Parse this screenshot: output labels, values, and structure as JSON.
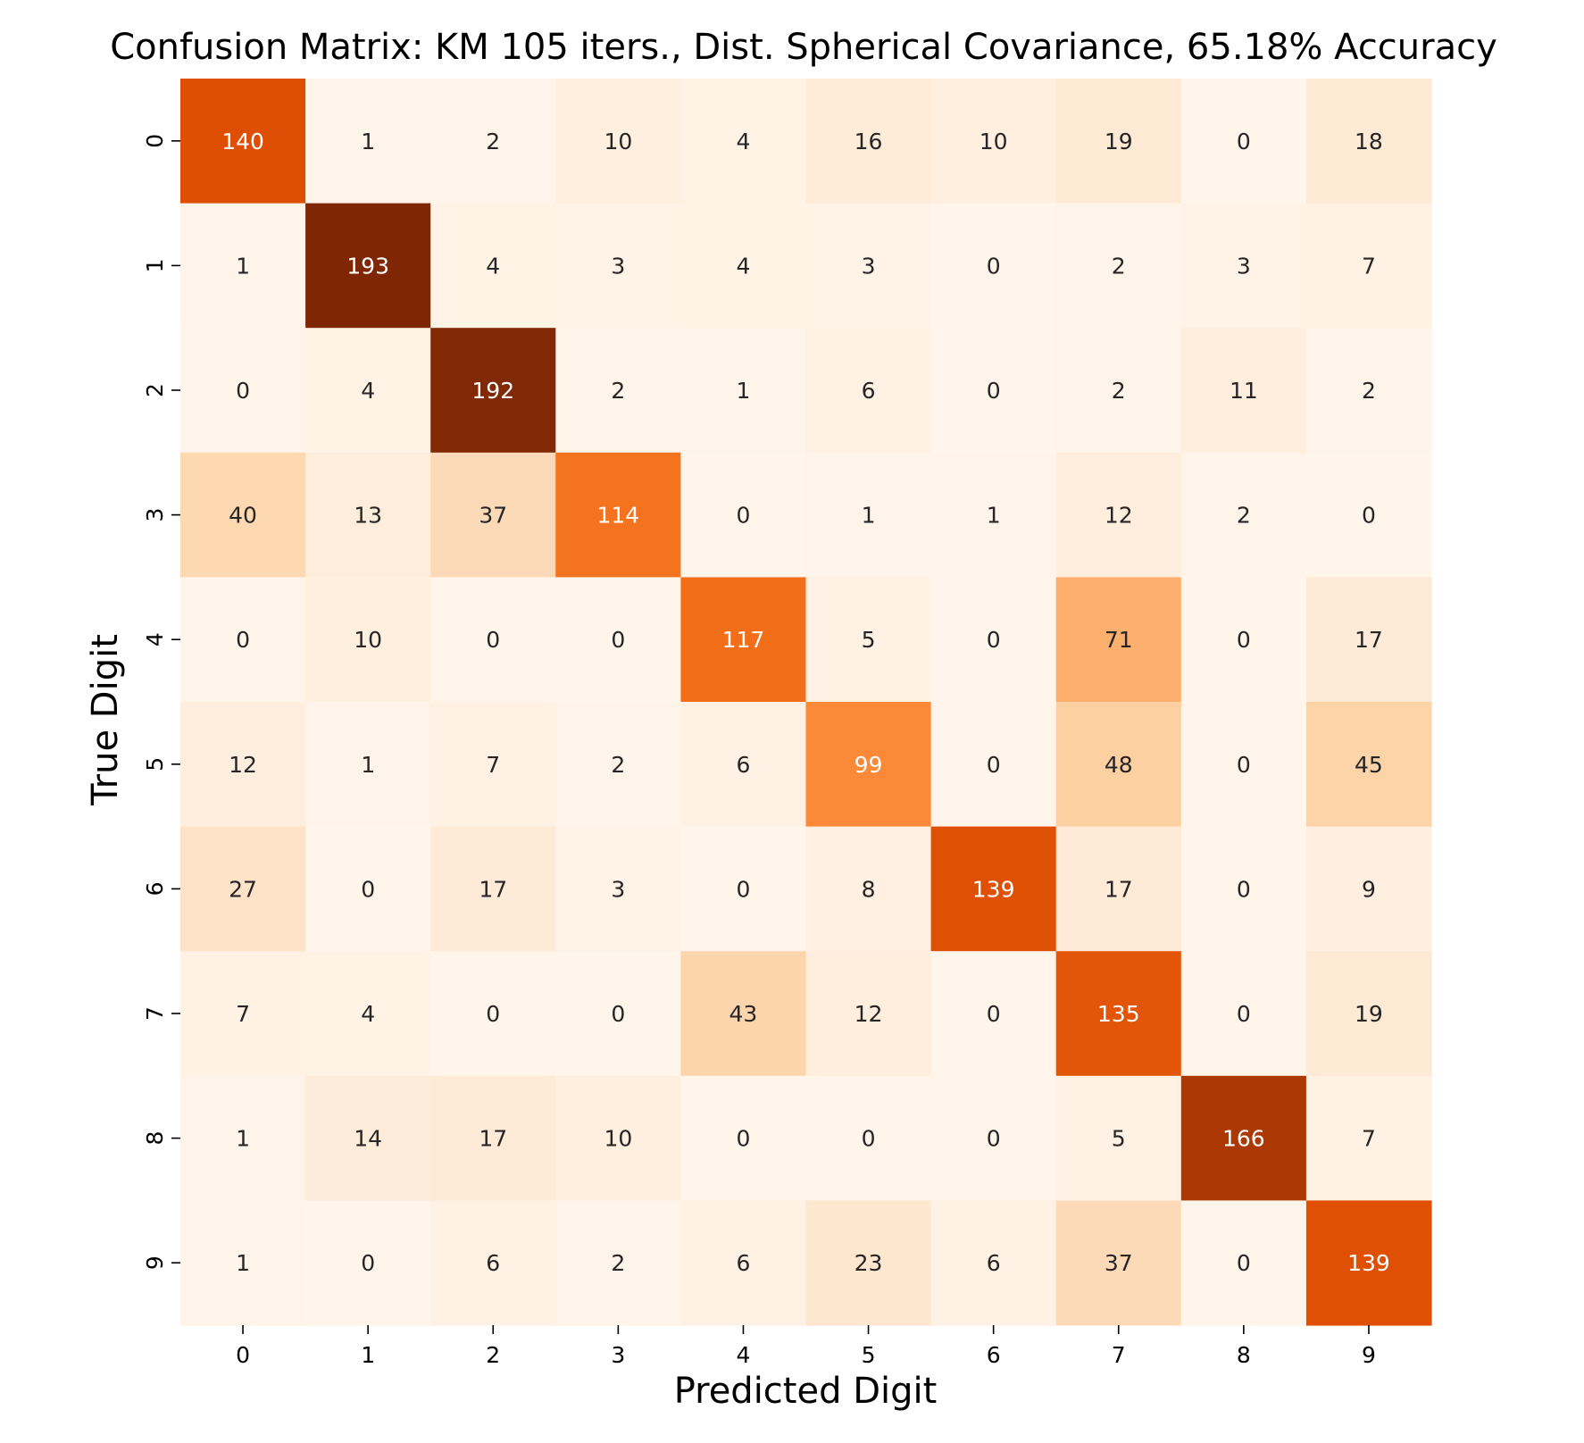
{
  "chart_data": {
    "type": "heatmap",
    "title": "Confusion Matrix: KM 105 iters., Dist. Spherical Covariance, 65.18% Accuracy",
    "xlabel": "Predicted Digit",
    "ylabel": "True Digit",
    "x_ticks": [
      "0",
      "1",
      "2",
      "3",
      "4",
      "5",
      "6",
      "7",
      "8",
      "9"
    ],
    "y_ticks": [
      "0",
      "1",
      "2",
      "3",
      "4",
      "5",
      "6",
      "7",
      "8",
      "9"
    ],
    "colormap": "Oranges",
    "value_range": [
      0,
      193
    ],
    "matrix": [
      [
        140,
        1,
        2,
        10,
        4,
        16,
        10,
        19,
        0,
        18
      ],
      [
        1,
        193,
        4,
        3,
        4,
        3,
        0,
        2,
        3,
        7
      ],
      [
        0,
        4,
        192,
        2,
        1,
        6,
        0,
        2,
        11,
        2
      ],
      [
        40,
        13,
        37,
        114,
        0,
        1,
        1,
        12,
        2,
        0
      ],
      [
        0,
        10,
        0,
        0,
        117,
        5,
        0,
        71,
        0,
        17
      ],
      [
        12,
        1,
        7,
        2,
        6,
        99,
        0,
        48,
        0,
        45
      ],
      [
        27,
        0,
        17,
        3,
        0,
        8,
        139,
        17,
        0,
        9
      ],
      [
        7,
        4,
        0,
        0,
        43,
        12,
        0,
        135,
        0,
        19
      ],
      [
        1,
        14,
        17,
        10,
        0,
        0,
        0,
        5,
        166,
        7
      ],
      [
        1,
        0,
        6,
        2,
        6,
        23,
        6,
        37,
        0,
        139
      ]
    ],
    "colorbar": false
  }
}
